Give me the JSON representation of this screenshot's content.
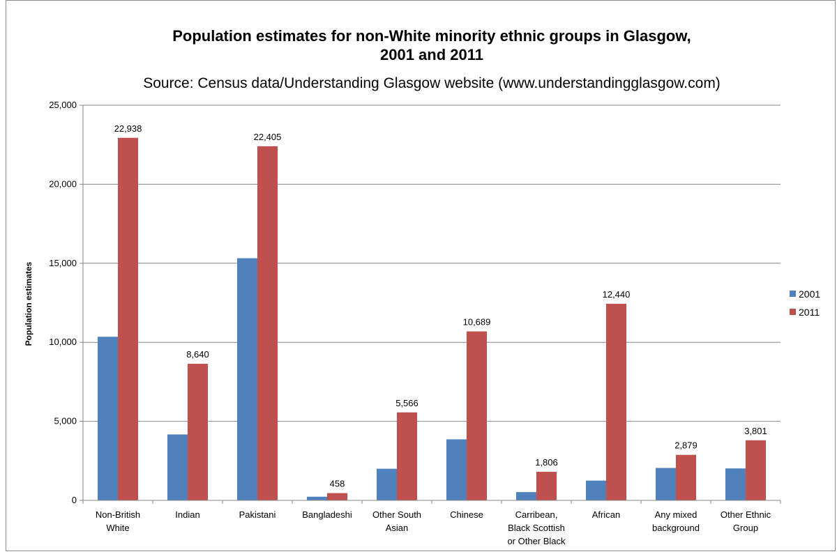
{
  "chart_data": {
    "type": "bar",
    "title_line1": "Population estimates for non-White minority ethnic groups in Glasgow,",
    "title_line2": "2001 and 2011",
    "subtitle": "Source: Census data/Understanding Glasgow website (www.understandingglasgow.com)",
    "xlabel": "",
    "ylabel": "Population estimates",
    "ylim": [
      0,
      25000
    ],
    "yticks": [
      0,
      5000,
      10000,
      15000,
      20000,
      25000
    ],
    "ytick_labels": [
      "0",
      "5,000",
      "10,000",
      "15,000",
      "20,000",
      "25,000"
    ],
    "grid": true,
    "legend_position": "right",
    "categories": [
      [
        "Non-British",
        "White"
      ],
      [
        "Indian"
      ],
      [
        "Pakistani"
      ],
      [
        "Bangladeshi"
      ],
      [
        "Other South",
        "Asian"
      ],
      [
        "Chinese"
      ],
      [
        "Carribean,",
        "Black Scottish",
        "or Other Black"
      ],
      [
        "African"
      ],
      [
        "Any mixed",
        "background"
      ],
      [
        "Other Ethnic",
        "Group"
      ]
    ],
    "series": [
      {
        "name": "2001",
        "color": "#4f81bd",
        "values": [
          10350,
          4170,
          15320,
          230,
          2000,
          3860,
          520,
          1250,
          2050,
          2020
        ],
        "labels": [
          "",
          "",
          "",
          "",
          "",
          "",
          "",
          "",
          "",
          ""
        ]
      },
      {
        "name": "2011",
        "color": "#c0504d",
        "values": [
          22938,
          8640,
          22405,
          458,
          5566,
          10689,
          1806,
          12440,
          2879,
          3801
        ],
        "labels": [
          "22,938",
          "8,640",
          "22,405",
          "458",
          "5,566",
          "10,689",
          "1,806",
          "12,440",
          "2,879",
          "3,801"
        ]
      }
    ]
  }
}
